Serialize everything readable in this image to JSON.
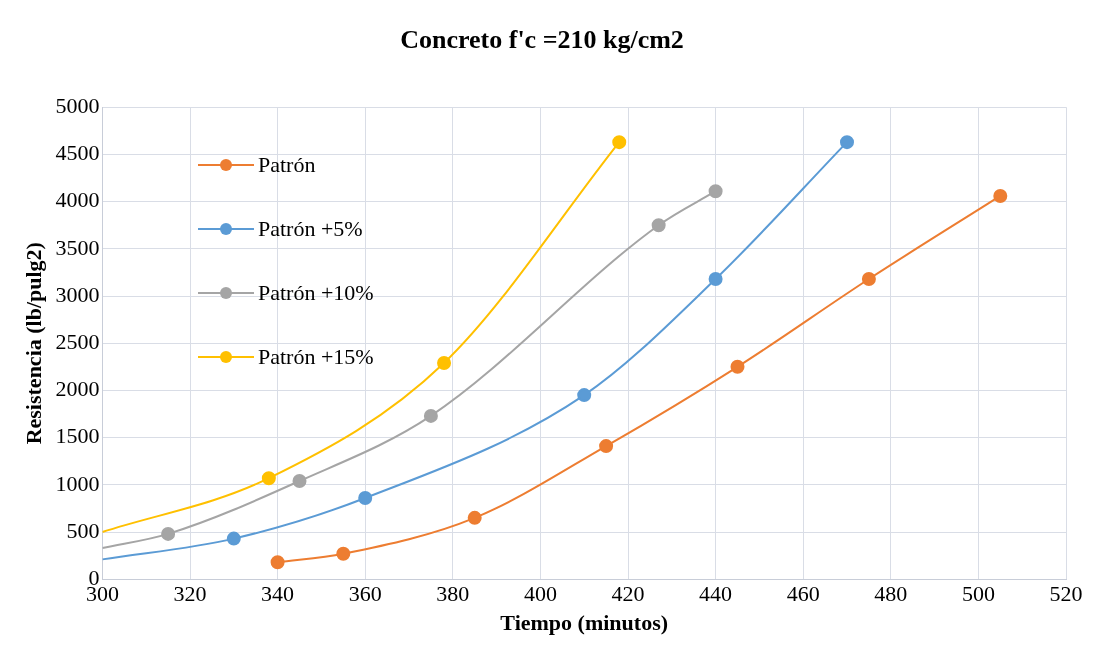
{
  "chart_data": {
    "type": "line",
    "title": "Concreto f'c =210 kg/cm2",
    "xlabel": "Tiempo (minutos)",
    "ylabel": "Resistencia (lb/pulg2)",
    "xlim": [
      300,
      520
    ],
    "xticks": [
      300,
      320,
      340,
      360,
      380,
      400,
      420,
      440,
      460,
      480,
      500,
      520
    ],
    "ylim": [
      0,
      5000
    ],
    "yticks": [
      0,
      500,
      1000,
      1500,
      2000,
      2500,
      3000,
      3500,
      4000,
      4500,
      5000
    ],
    "grid": true,
    "legend": "top left",
    "marker": "circle",
    "line_style": "solid",
    "series": [
      {
        "name": "Patrón",
        "color": "#ed7d31",
        "x": [
          340,
          355,
          385,
          415,
          445,
          475,
          505
        ],
        "values": [
          180,
          270,
          650,
          1410,
          2250,
          3180,
          4060
        ]
      },
      {
        "name": "Patrón +5%",
        "color": "#5b9bd5",
        "x": [
          300,
          330,
          360,
          410,
          440,
          470
        ],
        "values": [
          210,
          430,
          860,
          1950,
          3180,
          4630
        ]
      },
      {
        "name": "Patrón +10%",
        "color": "#a5a5a5",
        "x": [
          300,
          315,
          345,
          375,
          427,
          440
        ],
        "values": [
          330,
          480,
          1040,
          1730,
          3750,
          4110
        ]
      },
      {
        "name": "Patrón +15%",
        "color": "#ffc000",
        "x": [
          300,
          338,
          378,
          418
        ],
        "values": [
          500,
          1070,
          2290,
          4630
        ]
      }
    ]
  }
}
